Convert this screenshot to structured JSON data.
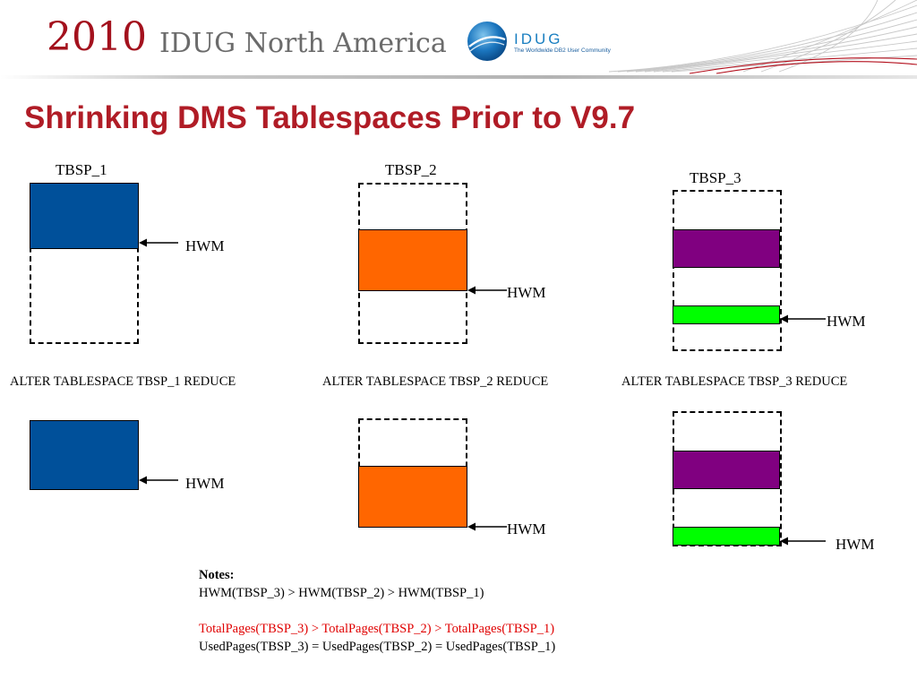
{
  "header": {
    "year": "2010",
    "conference": "IDUG North America",
    "logo": {
      "name": "IDUG",
      "tagline": "The Worldwide DB2 User Community"
    }
  },
  "title": "Shrinking DMS Tablespaces Prior to V9.7",
  "tablespaces": [
    {
      "name": "TBSP_1",
      "hwm_label": "HWM",
      "command": "ALTER TABLESPACE TBSP_1 REDUCE",
      "color": "#00509A"
    },
    {
      "name": "TBSP_2",
      "hwm_label": "HWM",
      "command": "ALTER TABLESPACE TBSP_2 REDUCE",
      "color": "#FF6600"
    },
    {
      "name": "TBSP_3",
      "hwm_label": "HWM",
      "command": "ALTER TABLESPACE TBSP_3 REDUCE",
      "color": "#800080",
      "secondary_color": "#00FF00"
    }
  ],
  "notes": {
    "heading": "Notes:",
    "line1": "HWM(TBSP_3) > HWM(TBSP_2) > HWM(TBSP_1)",
    "line2": "TotalPages(TBSP_3) > TotalPages(TBSP_2) > TotalPages(TBSP_1)",
    "line3": "UsedPages(TBSP_3) = UsedPages(TBSP_2) = UsedPages(TBSP_1)"
  },
  "colors": {
    "title": "#b01c26",
    "year": "#a3111d",
    "note_highlight": "#e00000"
  }
}
